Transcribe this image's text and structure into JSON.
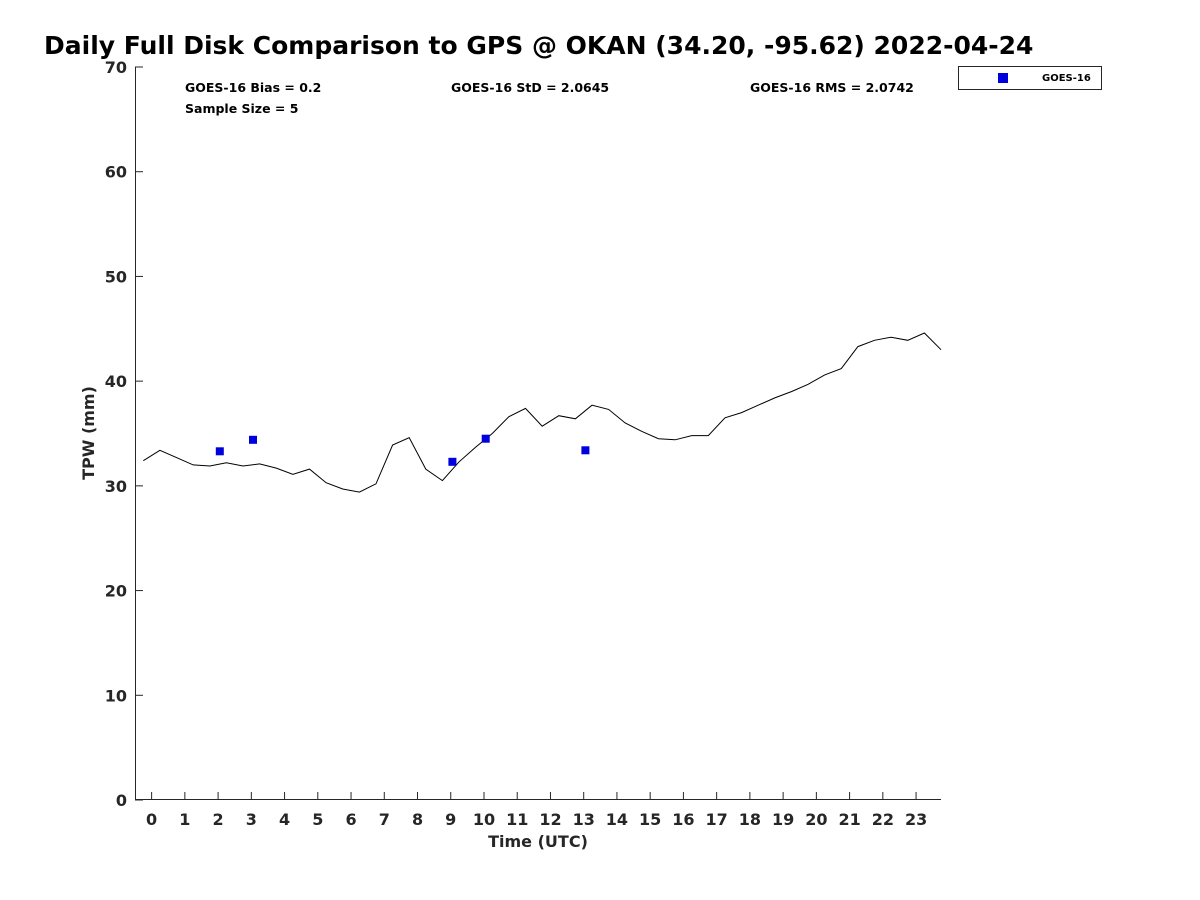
{
  "chart_data": {
    "type": "line",
    "title": "Daily Full Disk Comparison to GPS @ OKAN (34.20, -95.62) 2022-04-24",
    "xlabel": "Time (UTC)",
    "ylabel": "TPW (mm)",
    "xlim": [
      -0.5,
      23.75
    ],
    "ylim": [
      0,
      70
    ],
    "x_ticks": [
      "0",
      "1",
      "2",
      "3",
      "4",
      "5",
      "6",
      "7",
      "8",
      "9",
      "10",
      "11",
      "12",
      "13",
      "14",
      "15",
      "16",
      "17",
      "18",
      "19",
      "20",
      "21",
      "22",
      "23"
    ],
    "y_ticks": [
      "0",
      "10",
      "20",
      "30",
      "40",
      "50",
      "60",
      "70"
    ],
    "grid": false,
    "legend_position": "top-right",
    "stats": {
      "bias": "GOES-16 Bias = 0.2",
      "sample": "Sample Size = 5",
      "std": "GOES-16 StD = 2.0645",
      "rms": "GOES-16 RMS = 2.0742"
    },
    "gps_line": {
      "color": "#000000",
      "points": [
        [
          -0.25,
          32.4
        ],
        [
          0.25,
          33.4
        ],
        [
          0.75,
          32.7
        ],
        [
          1.25,
          32.0
        ],
        [
          1.75,
          31.9
        ],
        [
          2.25,
          32.2
        ],
        [
          2.75,
          31.9
        ],
        [
          3.25,
          32.1
        ],
        [
          3.75,
          31.7
        ],
        [
          4.25,
          31.1
        ],
        [
          4.75,
          31.6
        ],
        [
          5.25,
          30.3
        ],
        [
          5.75,
          29.7
        ],
        [
          6.25,
          29.4
        ],
        [
          6.75,
          30.2
        ],
        [
          7.25,
          33.9
        ],
        [
          7.75,
          34.6
        ],
        [
          8.25,
          31.6
        ],
        [
          8.75,
          30.5
        ],
        [
          9.25,
          32.3
        ],
        [
          9.75,
          33.7
        ],
        [
          10.25,
          35.0
        ],
        [
          10.75,
          36.6
        ],
        [
          11.25,
          37.4
        ],
        [
          11.75,
          35.7
        ],
        [
          12.25,
          36.7
        ],
        [
          12.75,
          36.4
        ],
        [
          13.25,
          37.7
        ],
        [
          13.75,
          37.3
        ],
        [
          14.25,
          36.0
        ],
        [
          14.75,
          35.2
        ],
        [
          15.25,
          34.5
        ],
        [
          15.75,
          34.4
        ],
        [
          16.25,
          34.8
        ],
        [
          16.75,
          34.8
        ],
        [
          17.25,
          36.5
        ],
        [
          17.75,
          37.0
        ],
        [
          18.25,
          37.7
        ],
        [
          18.75,
          38.4
        ],
        [
          19.25,
          39.0
        ],
        [
          19.75,
          39.7
        ],
        [
          20.25,
          40.6
        ],
        [
          20.75,
          41.2
        ],
        [
          21.25,
          43.3
        ],
        [
          21.75,
          43.9
        ],
        [
          22.25,
          44.2
        ],
        [
          22.75,
          43.9
        ],
        [
          23.25,
          44.6
        ],
        [
          23.75,
          43.0
        ]
      ]
    },
    "series": [
      {
        "name": "GOES-16",
        "color": "#0000dd",
        "marker": "square",
        "points": [
          [
            2.05,
            33.3
          ],
          [
            3.05,
            34.4
          ],
          [
            9.05,
            32.3
          ],
          [
            10.05,
            34.5
          ],
          [
            13.05,
            33.4
          ]
        ]
      }
    ]
  }
}
